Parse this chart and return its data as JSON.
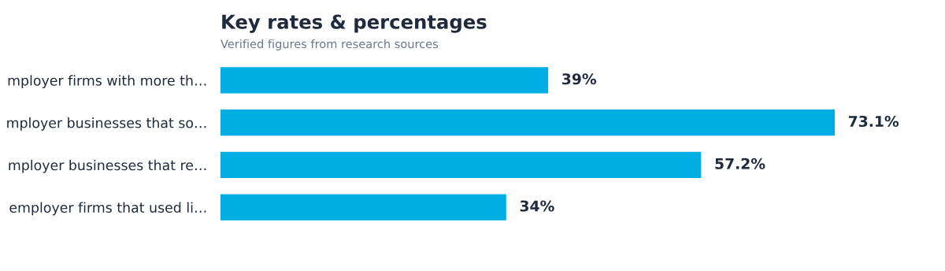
{
  "chart_data": {
    "type": "bar",
    "orientation": "horizontal",
    "title": "Key rates & percentages",
    "subtitle": "Verified figures from research sources",
    "categories": [
      "mployer firms with more th…",
      "mployer businesses that so…",
      "mployer businesses that re…",
      "employer firms that used li…"
    ],
    "values": [
      39,
      73.1,
      57.2,
      34
    ],
    "value_labels": [
      "39%",
      "73.1%",
      "57.2%",
      "34%"
    ],
    "color": "#00aee3",
    "grid": false,
    "legend": false
  }
}
